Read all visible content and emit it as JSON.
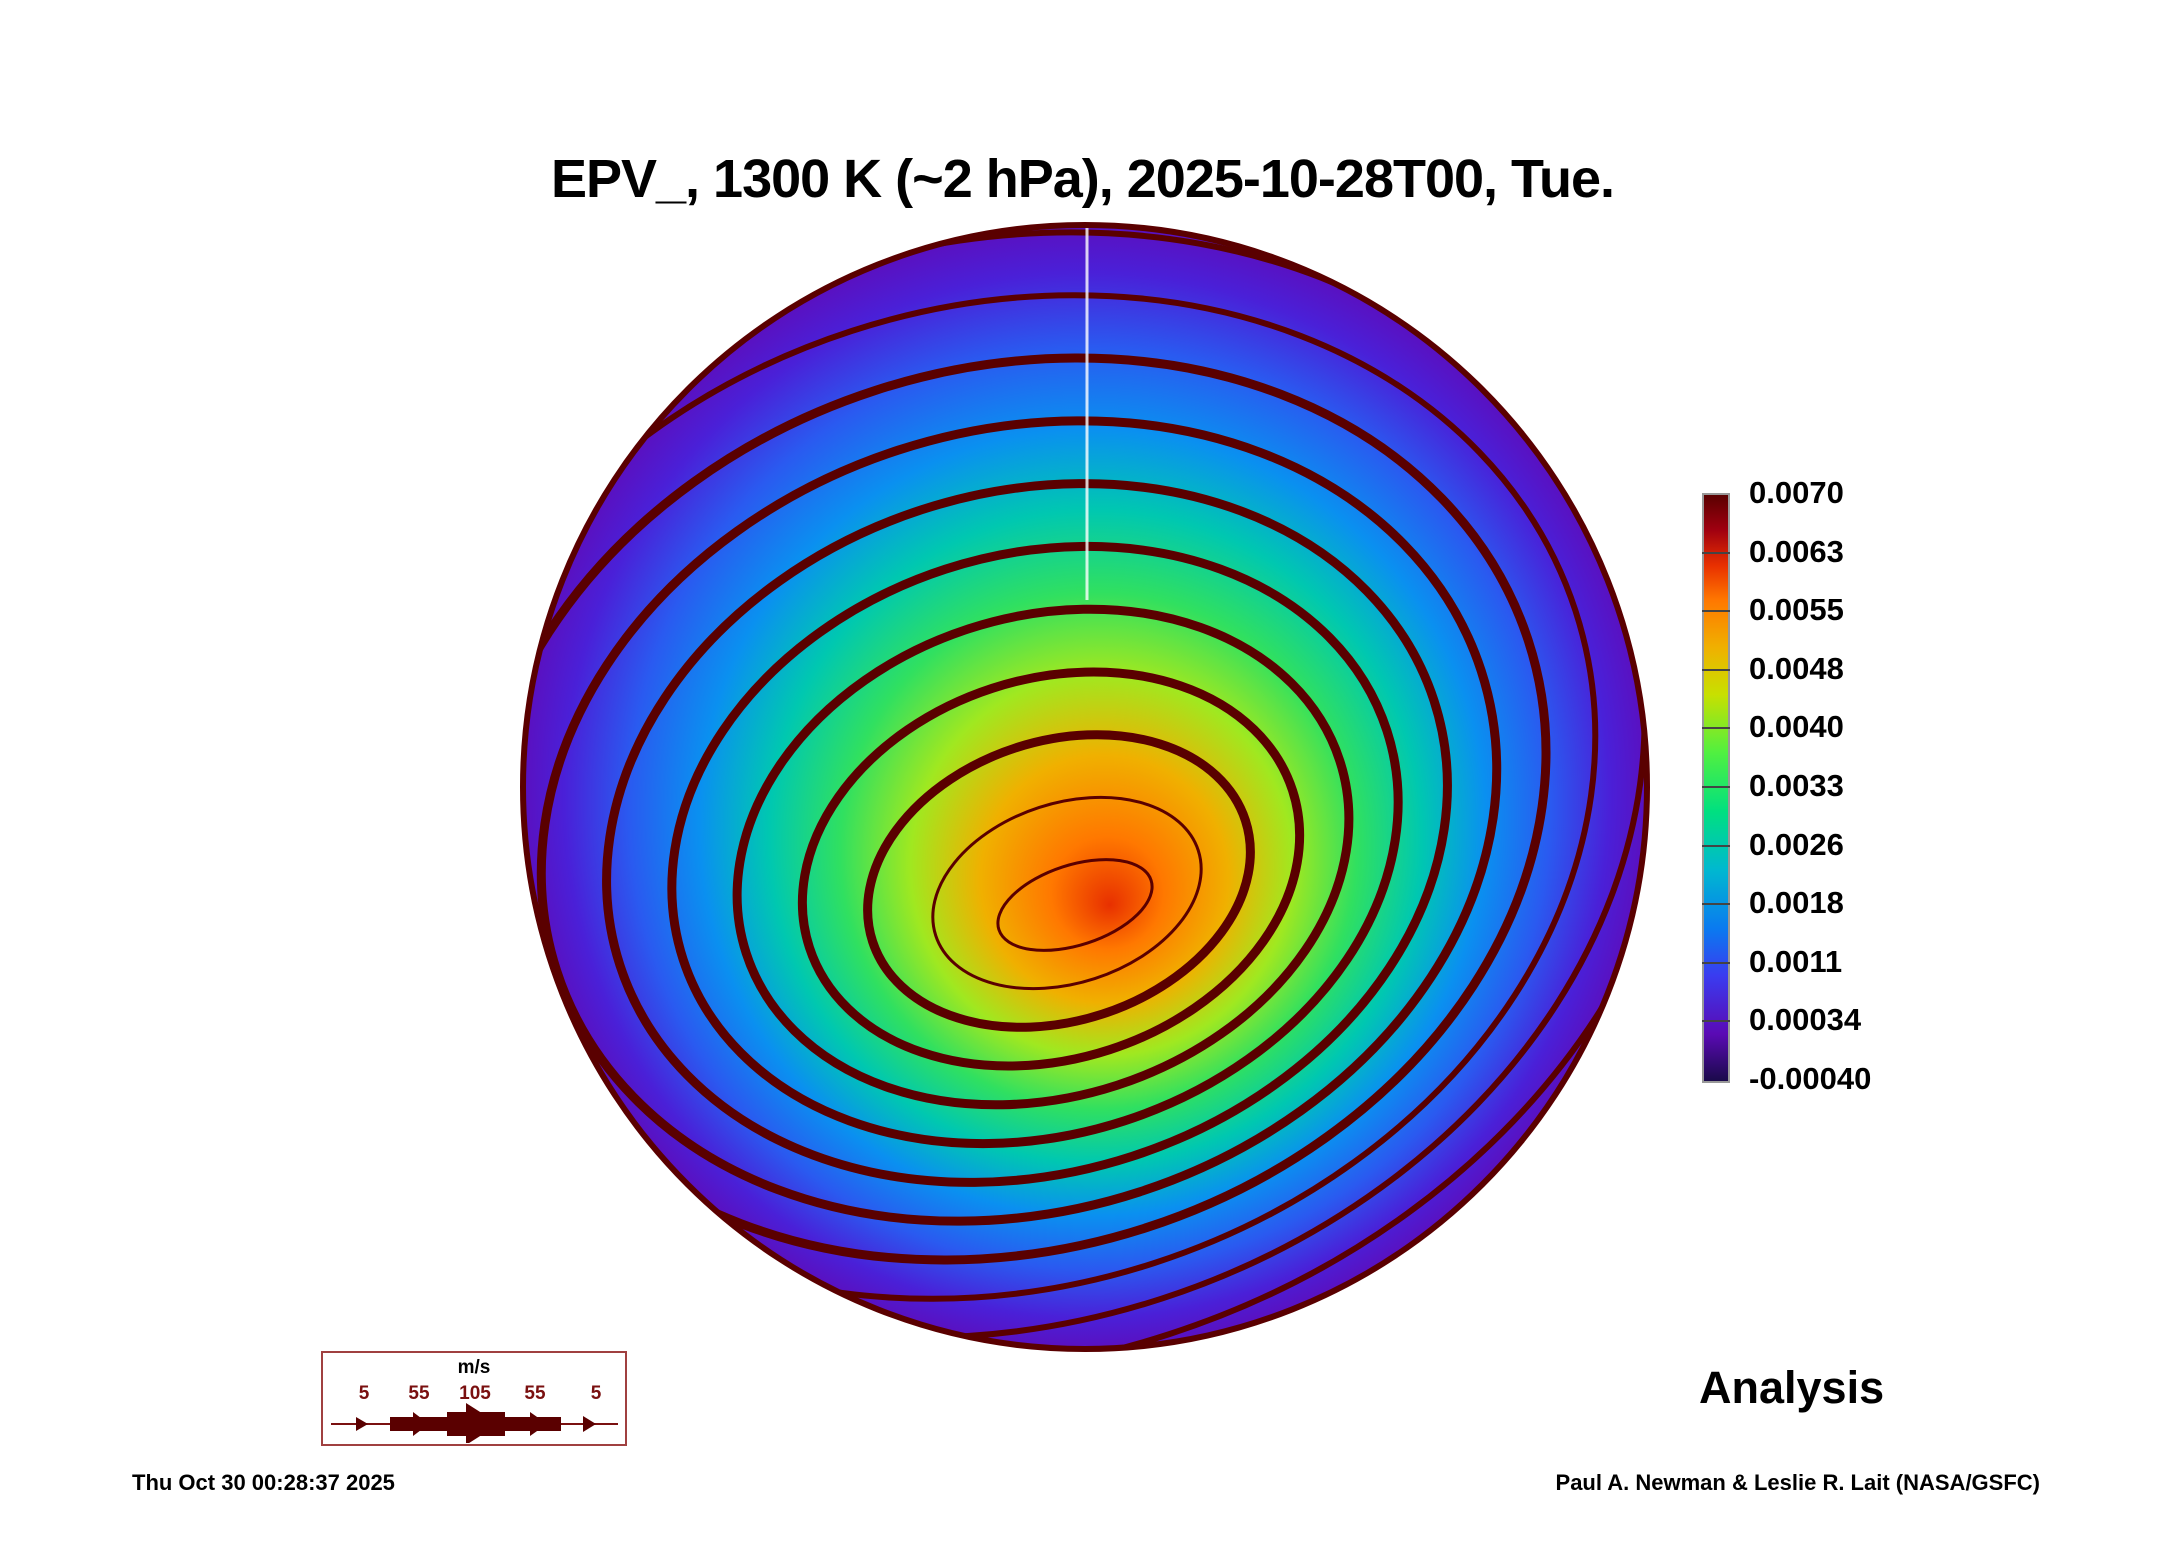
{
  "chart_data": {
    "type": "heatmap",
    "title": "EPV_, 1300 K (~2 hPa), 2025-10-28T00, Tue.",
    "projection": "orthographic (northern hemisphere)",
    "variable": "EPV_",
    "colorbar": {
      "ticks": [
        "0.0070",
        "0.0063",
        "0.0055",
        "0.0048",
        "0.0040",
        "0.0033",
        "0.0026",
        "0.0018",
        "0.0011",
        "0.00034",
        "-0.00040"
      ],
      "range": [
        -0.0004,
        0.007
      ]
    },
    "wind_legend": {
      "unit": "m/s",
      "values": [
        "5",
        "55",
        "105",
        "55",
        "5"
      ]
    },
    "annotation": "Analysis"
  },
  "footer": {
    "timestamp": "Thu Oct 30 00:28:37 2025",
    "credit": "Paul A. Newman & Leslie R. Lait (NASA/GSFC)"
  },
  "colors": {
    "streamline": "#5a0000",
    "legend_text": "#7a1010"
  }
}
